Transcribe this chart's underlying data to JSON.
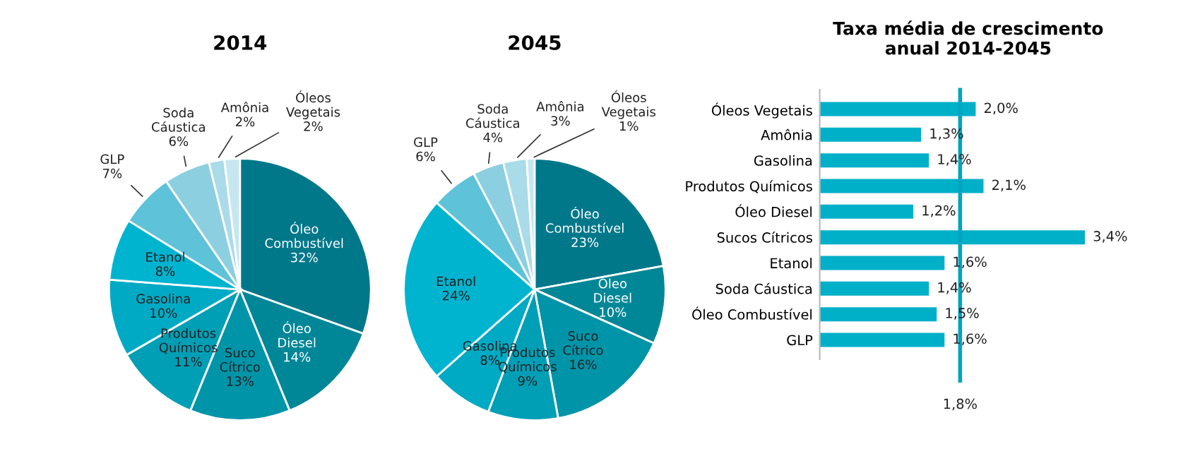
{
  "chart_data": [
    {
      "type": "pie",
      "title": "2014",
      "categories": [
        "Óleo Combustível",
        "Óleo Diesel",
        "Suco Cítrico",
        "Produtos Químicos",
        "Gasolina",
        "Etanol",
        "GLP",
        "Soda Cáustica",
        "Amônia",
        "Óleos Vegetais"
      ],
      "values": [
        32,
        14,
        13,
        11,
        10,
        8,
        7,
        6,
        2,
        2
      ],
      "value_labels": [
        "32%",
        "14%",
        "13%",
        "11%",
        "10%",
        "8%",
        "7%",
        "6%",
        "2%",
        "2%"
      ],
      "colors": [
        "#00788a",
        "#008797",
        "#0094a8",
        "#009fb6",
        "#00aac4",
        "#00b4d0",
        "#5ec2d8",
        "#8ccfe0",
        "#aadbe8",
        "#c6e7f0"
      ]
    },
    {
      "type": "pie",
      "title": "2045",
      "categories": [
        "Óleo Combustível",
        "Óleo Diesel",
        "Suco Cítrico",
        "Produtos Químicos",
        "Gasolina",
        "Etanol",
        "GLP",
        "Soda Cáustica",
        "Amônia",
        "Óleos Vegetais"
      ],
      "values": [
        23,
        10,
        16,
        9,
        8,
        24,
        6,
        4,
        3,
        1
      ],
      "value_labels": [
        "23%",
        "10%",
        "16%",
        "9%",
        "8%",
        "24%",
        "6%",
        "4%",
        "3%",
        "1%"
      ],
      "colors": [
        "#00788a",
        "#008797",
        "#0094a8",
        "#009fb6",
        "#00aac4",
        "#00b4d0",
        "#5ec2d8",
        "#8ccfe0",
        "#aadbe8",
        "#c6e7f0"
      ]
    },
    {
      "type": "bar",
      "orientation": "horizontal",
      "title": "Taxa média de crescimento\nanual 2014-2045",
      "categories": [
        "Óleos Vegetais",
        "Amônia",
        "Gasolina",
        "Produtos Químicos",
        "Óleo Diesel",
        "Sucos Cítricos",
        "Etanol",
        "Soda Cáustica",
        "Óleo Combustível",
        "GLP"
      ],
      "values": [
        2.0,
        1.3,
        1.4,
        2.1,
        1.2,
        3.4,
        1.6,
        1.4,
        1.5,
        1.6
      ],
      "value_labels": [
        "2,0%",
        "1,3%",
        "1,4%",
        "2,1%",
        "1,2%",
        "3,4%",
        "1,6%",
        "1,4%",
        "1,5%",
        "1,6%"
      ],
      "color": "#00b0c8",
      "ref_lines": [
        {
          "axis": "x",
          "value": 1.8,
          "label": "1,8%",
          "color": "#00a4c0"
        }
      ]
    }
  ]
}
